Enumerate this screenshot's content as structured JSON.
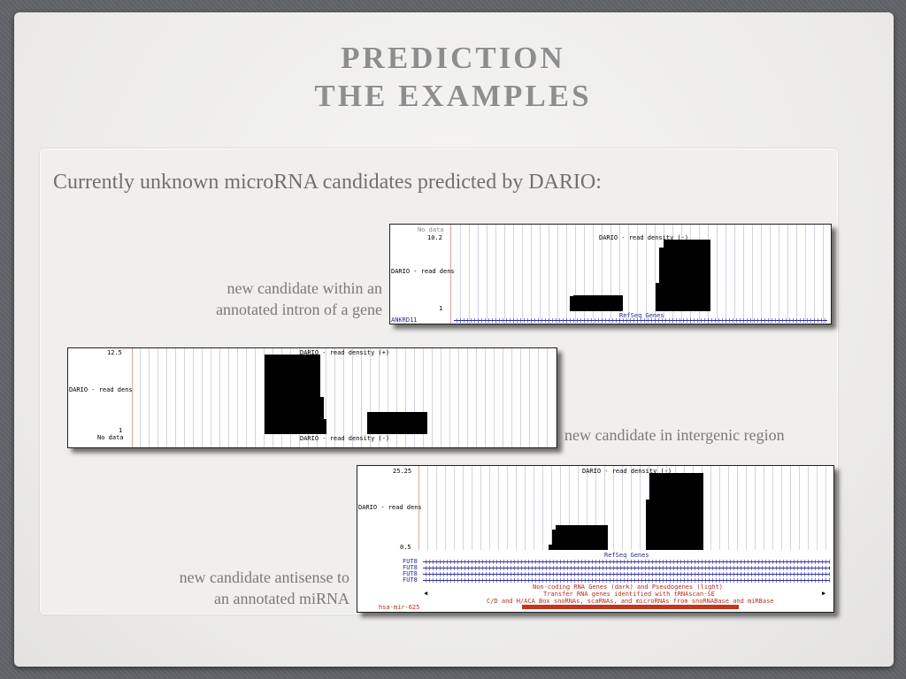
{
  "slide": {
    "title_line1": "PREDICTION",
    "title_line2": "THE EXAMPLES",
    "heading": "Currently unknown microRNA candidates predicted by DARIO:"
  },
  "examples": [
    {
      "caption_line1": "new candidate within an",
      "caption_line2": "annotated intron of a gene",
      "track": {
        "nodata_label": "No data",
        "ymax": "10.2",
        "ymin": "1",
        "side_label": "DARIO - read dens",
        "track_title": "DARIO - read density (-)",
        "gene_track_title": "RefSeq Genes",
        "gene_name": "ANKRD11"
      }
    },
    {
      "caption": "new candidate in intergenic region",
      "track": {
        "ymax": "12.5",
        "ymin": "1",
        "side_label": "DARIO - read dens",
        "nodata_label": "No data",
        "track_title_plus": "DARIO - read density (+)",
        "track_title_minus": "DARIO - read density (-)"
      }
    },
    {
      "caption_line1": "new candidate antisense to",
      "caption_line2": "an annotated miRNA",
      "track": {
        "ymax": "25.25",
        "ymin": "0.5",
        "side_label": "DARIO - read dens",
        "track_title": "DARIO - read density (-)",
        "gene_track_title": "RefSeq Genes",
        "genes": [
          "FUT8",
          "FUT8",
          "FUT8",
          "FUT8"
        ],
        "ncrna_title": "Non-coding RNA Genes (dark) and Pseudogenes (light)",
        "trna_title": "Transfer RNA genes identified with tRNAscan-SE",
        "snorna_title": "C/D and H/ACA Box snoRNAs, scaRNAs, and microRNAs from snoRNABase and miRBase",
        "mirna_name": "hsa-mir-625"
      }
    }
  ],
  "colors": {
    "title": "#8e8e8e",
    "gene_blue": "#2c2c8c",
    "mirna_red": "#c23520"
  }
}
